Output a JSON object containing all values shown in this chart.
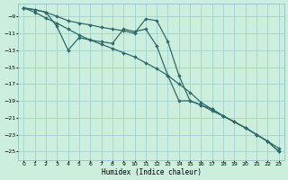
{
  "xlabel": "Humidex (Indice chaleur)",
  "bg_color": "#cceedd",
  "grid_color": "#99cccc",
  "line_color": "#2d6b6b",
  "xlim": [
    -0.5,
    23.5
  ],
  "ylim": [
    -26.0,
    -7.5
  ],
  "yticks": [
    -9,
    -11,
    -13,
    -15,
    -17,
    -19,
    -21,
    -23,
    -25
  ],
  "xticks": [
    0,
    1,
    2,
    3,
    4,
    5,
    6,
    7,
    8,
    9,
    10,
    11,
    12,
    13,
    14,
    15,
    16,
    17,
    18,
    19,
    20,
    21,
    22,
    23
  ],
  "line1_x": [
    0,
    1,
    2,
    3,
    4,
    5,
    6,
    7,
    8,
    9,
    10,
    11,
    12,
    13,
    14,
    15,
    16,
    17,
    18,
    19,
    20,
    21,
    22,
    23
  ],
  "line1_y": [
    -8.0,
    -8.2,
    -8.5,
    -9.0,
    -9.5,
    -9.8,
    -10.0,
    -10.3,
    -10.5,
    -10.7,
    -11.0,
    -9.3,
    -9.5,
    -12.0,
    -16.0,
    -19.0,
    -19.5,
    -20.0,
    -20.8,
    -21.5,
    -22.2,
    -23.0,
    -23.8,
    -24.6
  ],
  "line2_x": [
    0,
    1,
    2,
    3,
    4,
    5,
    6,
    7,
    8,
    9,
    10,
    11,
    12,
    13,
    14,
    15,
    16,
    17,
    18,
    19,
    20,
    21,
    22,
    23
  ],
  "line2_y": [
    -8.0,
    -8.2,
    -8.5,
    -10.2,
    -13.0,
    -11.5,
    -11.8,
    -12.0,
    -12.2,
    -10.5,
    -10.8,
    -10.5,
    -12.5,
    -16.0,
    -19.0,
    -19.0,
    -19.5,
    -20.2,
    -20.8,
    -21.5,
    -22.2,
    -23.0,
    -23.8,
    -25.0
  ],
  "line3_x": [
    0,
    1,
    2,
    3,
    4,
    5,
    6,
    7,
    8,
    9,
    10,
    11,
    12,
    13,
    14,
    15,
    16,
    17,
    18,
    19,
    20,
    21,
    22,
    23
  ],
  "line3_y": [
    -8.0,
    -8.5,
    -9.2,
    -9.8,
    -10.5,
    -11.2,
    -11.8,
    -12.3,
    -12.8,
    -13.3,
    -13.8,
    -14.5,
    -15.2,
    -16.0,
    -17.0,
    -18.0,
    -19.2,
    -20.0,
    -20.8,
    -21.5,
    -22.2,
    -23.0,
    -23.8,
    -25.0
  ]
}
